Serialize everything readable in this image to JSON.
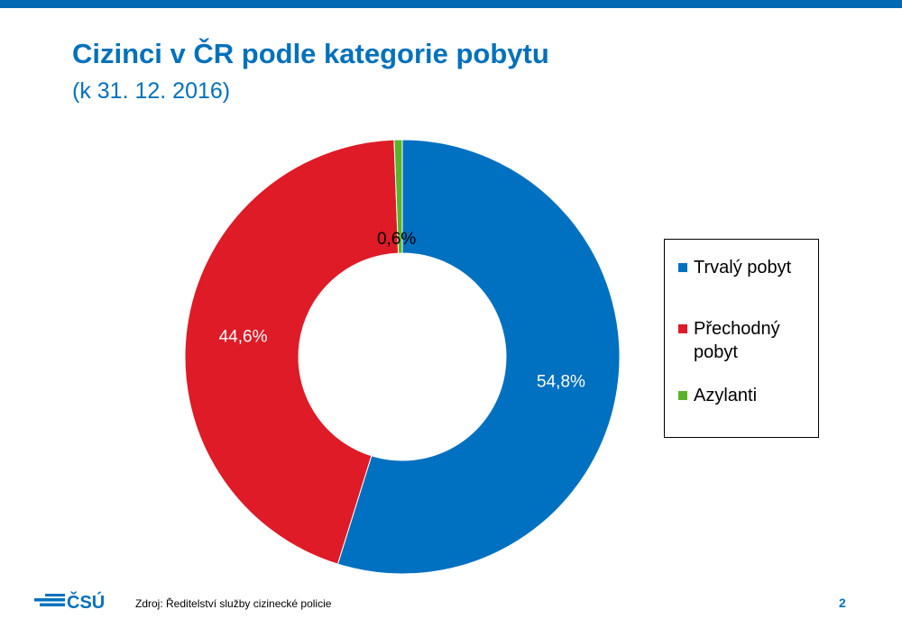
{
  "title": "Cizinci v ČR podle kategorie pobytu",
  "subtitle": "(k 31. 12. 2016)",
  "chart_data": {
    "type": "pie",
    "style": "donut",
    "title": "Cizinci v ČR podle kategorie pobytu",
    "subtitle": "(k 31. 12. 2016)",
    "categories": [
      "Trvalý pobyt",
      "Přechodný pobyt",
      "Azylanti"
    ],
    "values": [
      54.8,
      44.6,
      0.6
    ],
    "labels": [
      "54,8%",
      "44,6%",
      "0,6%"
    ],
    "unit": "%",
    "colors": [
      "#0070c0",
      "#de1b26",
      "#5ab42a"
    ],
    "label_colors": [
      "#ffffff",
      "#ffffff",
      "#000000"
    ],
    "legend": {
      "position": "right",
      "entries": [
        {
          "lines": [
            "Trvalý pobyt"
          ]
        },
        {
          "lines": [
            "Přechodný",
            "pobyt"
          ]
        },
        {
          "lines": [
            "Azylanti"
          ]
        }
      ]
    }
  },
  "footer": {
    "logo_text": "ČSÚ",
    "logo_color": "#0071bc",
    "source": "Zdroj: Ředitelství služby cizinecké policie",
    "page_number": "2"
  }
}
